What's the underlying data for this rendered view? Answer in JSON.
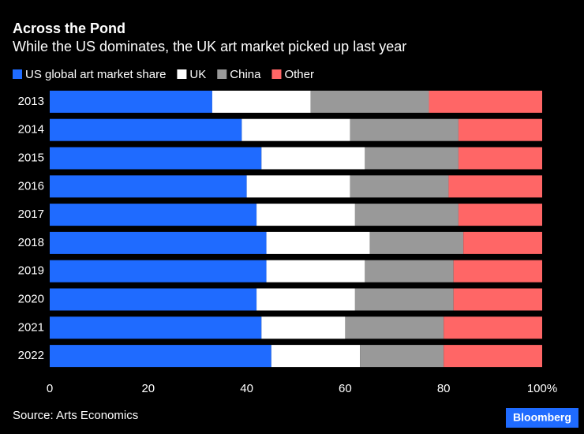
{
  "chart_data": {
    "type": "stacked-bar-horizontal",
    "title": "Across the Pond",
    "subtitle": "While the US dominates, the UK art market picked up last year",
    "source": "Source: Arts Economics",
    "brand": "Bloomberg",
    "categories": [
      "2013",
      "2014",
      "2015",
      "2016",
      "2017",
      "2018",
      "2019",
      "2020",
      "2021",
      "2022"
    ],
    "series": [
      {
        "name": "US global art market share",
        "color": "#1f6bff",
        "values": [
          33,
          39,
          43,
          40,
          42,
          44,
          44,
          42,
          43,
          45
        ]
      },
      {
        "name": "UK",
        "color": "#ffffff",
        "values": [
          20,
          22,
          21,
          21,
          20,
          21,
          20,
          20,
          17,
          18
        ]
      },
      {
        "name": "China",
        "color": "#999999",
        "values": [
          24,
          22,
          19,
          20,
          21,
          19,
          18,
          20,
          20,
          17
        ]
      },
      {
        "name": "Other",
        "color": "#ff6666",
        "values": [
          23,
          17,
          17,
          19,
          17,
          16,
          18,
          18,
          20,
          20
        ]
      }
    ],
    "xlim": [
      0,
      100
    ],
    "xticks": [
      0,
      20,
      40,
      60,
      80,
      {
        "value": 100,
        "label": "100%"
      }
    ]
  }
}
